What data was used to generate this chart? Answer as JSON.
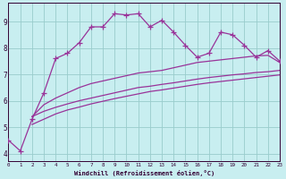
{
  "background_color": "#c8eef0",
  "plot_bg_color": "#c8eef0",
  "line_color": "#993399",
  "grid_color": "#99cccc",
  "axis_color": "#330033",
  "xlabel": "Windchill (Refroidissement éolien,°C)",
  "xlim": [
    0,
    23
  ],
  "ylim": [
    3.7,
    9.7
  ],
  "xticks": [
    0,
    1,
    2,
    3,
    4,
    5,
    6,
    7,
    8,
    9,
    10,
    11,
    12,
    13,
    14,
    15,
    16,
    17,
    18,
    19,
    20,
    21,
    22,
    23
  ],
  "yticks": [
    4,
    5,
    6,
    7,
    8,
    9
  ],
  "series1_x": [
    0,
    1,
    2,
    3,
    4,
    5,
    6,
    7,
    8,
    9,
    10,
    11,
    12,
    13,
    14,
    15,
    16,
    17,
    18,
    19,
    20,
    21,
    22,
    23
  ],
  "series1_y": [
    4.5,
    4.1,
    5.3,
    6.3,
    7.6,
    7.8,
    8.2,
    8.8,
    8.8,
    9.3,
    9.25,
    9.3,
    8.8,
    9.05,
    8.6,
    8.1,
    7.65,
    7.8,
    8.6,
    8.5,
    8.1,
    7.65,
    7.9,
    7.5
  ],
  "series2_x": [
    2,
    3,
    4,
    5,
    6,
    7,
    8,
    9,
    10,
    11,
    12,
    13,
    14,
    15,
    16,
    17,
    18,
    19,
    20,
    21,
    22,
    23
  ],
  "series2_y": [
    5.4,
    5.85,
    6.1,
    6.3,
    6.5,
    6.65,
    6.75,
    6.85,
    6.95,
    7.05,
    7.1,
    7.15,
    7.25,
    7.35,
    7.45,
    7.5,
    7.55,
    7.6,
    7.65,
    7.7,
    7.72,
    7.45
  ],
  "series3_x": [
    2,
    3,
    4,
    5,
    6,
    7,
    8,
    9,
    10,
    11,
    12,
    13,
    14,
    15,
    16,
    17,
    18,
    19,
    20,
    21,
    22,
    23
  ],
  "series3_y": [
    5.4,
    5.6,
    5.75,
    5.88,
    6.0,
    6.1,
    6.2,
    6.3,
    6.4,
    6.5,
    6.55,
    6.62,
    6.68,
    6.75,
    6.82,
    6.88,
    6.93,
    6.98,
    7.02,
    7.07,
    7.1,
    7.15
  ],
  "series4_x": [
    2,
    3,
    4,
    5,
    6,
    7,
    8,
    9,
    10,
    11,
    12,
    13,
    14,
    15,
    16,
    17,
    18,
    19,
    20,
    21,
    22,
    23
  ],
  "series4_y": [
    5.1,
    5.3,
    5.5,
    5.65,
    5.76,
    5.88,
    5.98,
    6.08,
    6.17,
    6.26,
    6.35,
    6.41,
    6.48,
    6.55,
    6.62,
    6.68,
    6.73,
    6.78,
    6.83,
    6.88,
    6.93,
    6.98
  ]
}
